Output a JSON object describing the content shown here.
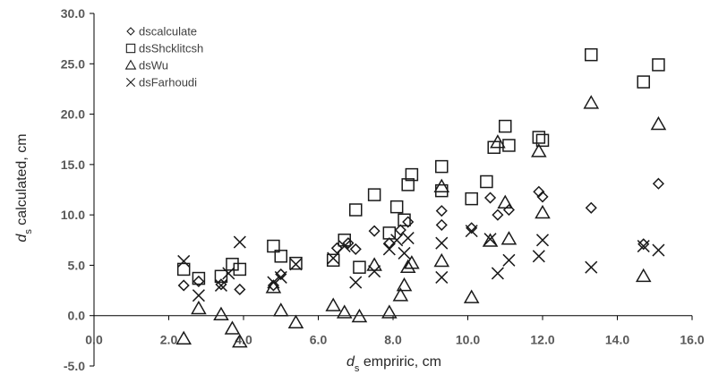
{
  "chart_data": {
    "type": "scatter",
    "title": "",
    "xlabel": {
      "symbol": "d",
      "subscript": "s",
      "rest": " empriric, cm"
    },
    "ylabel": {
      "symbol": "d",
      "subscript": "s",
      "rest": " calculated, cm"
    },
    "xlim": [
      0,
      16
    ],
    "ylim": [
      -5,
      30
    ],
    "x_ticks": [
      "0.0",
      "2.0",
      "4.0",
      "6.0",
      "8.0",
      "10.0",
      "12.0",
      "14.0",
      "16.0"
    ],
    "y_ticks": [
      "30.0",
      "25.0",
      "20.0",
      "15.0",
      "10.0",
      "5.0",
      "0.0",
      "-5.0"
    ],
    "grid": false,
    "legend_position": "top-left",
    "series": [
      {
        "name": "dscalculate",
        "marker": "diamond",
        "points": [
          [
            2.4,
            3.0
          ],
          [
            2.8,
            3.4
          ],
          [
            3.4,
            3.1
          ],
          [
            3.9,
            2.6
          ],
          [
            4.8,
            3.0
          ],
          [
            5.0,
            4.1
          ],
          [
            6.5,
            6.7
          ],
          [
            6.8,
            7.2
          ],
          [
            7.0,
            6.6
          ],
          [
            7.5,
            8.4
          ],
          [
            7.9,
            7.2
          ],
          [
            8.2,
            8.5
          ],
          [
            8.4,
            9.3
          ],
          [
            9.3,
            10.4
          ],
          [
            9.3,
            9.0
          ],
          [
            10.1,
            8.7
          ],
          [
            10.6,
            11.7
          ],
          [
            10.8,
            10.0
          ],
          [
            11.1,
            10.5
          ],
          [
            11.9,
            12.3
          ],
          [
            12.0,
            11.8
          ],
          [
            13.3,
            10.7
          ],
          [
            14.7,
            7.1
          ],
          [
            15.1,
            13.1
          ]
        ]
      },
      {
        "name": "dsShcklitcsh",
        "marker": "square",
        "points": [
          [
            2.4,
            4.6
          ],
          [
            2.8,
            3.7
          ],
          [
            3.4,
            3.9
          ],
          [
            3.7,
            5.1
          ],
          [
            3.9,
            4.6
          ],
          [
            4.8,
            6.9
          ],
          [
            5.0,
            5.9
          ],
          [
            5.4,
            5.2
          ],
          [
            6.4,
            5.5
          ],
          [
            6.7,
            7.5
          ],
          [
            7.0,
            10.5
          ],
          [
            7.1,
            4.8
          ],
          [
            7.5,
            12.0
          ],
          [
            7.9,
            8.2
          ],
          [
            8.1,
            10.8
          ],
          [
            8.3,
            9.5
          ],
          [
            8.4,
            13.0
          ],
          [
            8.5,
            14.0
          ],
          [
            9.3,
            14.8
          ],
          [
            9.3,
            12.4
          ],
          [
            10.1,
            11.6
          ],
          [
            10.5,
            13.3
          ],
          [
            10.7,
            16.7
          ],
          [
            11.0,
            18.8
          ],
          [
            11.1,
            16.9
          ],
          [
            11.9,
            17.7
          ],
          [
            12.0,
            17.4
          ],
          [
            13.3,
            25.9
          ],
          [
            14.7,
            23.2
          ],
          [
            15.1,
            24.9
          ]
        ]
      },
      {
        "name": "dsWu",
        "marker": "triangle",
        "points": [
          [
            2.4,
            -2.3
          ],
          [
            2.8,
            0.7
          ],
          [
            3.4,
            0.1
          ],
          [
            3.7,
            -1.3
          ],
          [
            3.9,
            -2.6
          ],
          [
            4.8,
            2.8
          ],
          [
            5.0,
            0.5
          ],
          [
            5.4,
            -0.7
          ],
          [
            6.4,
            1.0
          ],
          [
            6.7,
            0.3
          ],
          [
            7.1,
            -0.1
          ],
          [
            7.5,
            5.0
          ],
          [
            7.9,
            0.3
          ],
          [
            8.2,
            2.0
          ],
          [
            8.3,
            3.0
          ],
          [
            8.4,
            4.8
          ],
          [
            8.5,
            5.2
          ],
          [
            9.3,
            5.4
          ],
          [
            9.3,
            12.8
          ],
          [
            10.1,
            1.8
          ],
          [
            10.6,
            7.4
          ],
          [
            10.8,
            17.2
          ],
          [
            11.0,
            11.2
          ],
          [
            11.1,
            7.6
          ],
          [
            11.9,
            16.3
          ],
          [
            12.0,
            10.2
          ],
          [
            13.3,
            21.1
          ],
          [
            14.7,
            3.9
          ],
          [
            15.1,
            19.0
          ]
        ]
      },
      {
        "name": "dsFarhoudi",
        "marker": "x",
        "points": [
          [
            2.4,
            5.4
          ],
          [
            2.8,
            2.0
          ],
          [
            3.4,
            3.0
          ],
          [
            3.6,
            4.2
          ],
          [
            3.9,
            7.3
          ],
          [
            4.8,
            3.3
          ],
          [
            5.0,
            3.8
          ],
          [
            5.4,
            5.1
          ],
          [
            6.4,
            5.7
          ],
          [
            6.7,
            6.9
          ],
          [
            7.0,
            3.3
          ],
          [
            7.5,
            4.4
          ],
          [
            7.9,
            6.6
          ],
          [
            8.1,
            7.5
          ],
          [
            8.3,
            6.2
          ],
          [
            8.4,
            7.7
          ],
          [
            9.3,
            7.2
          ],
          [
            9.3,
            3.8
          ],
          [
            10.1,
            8.4
          ],
          [
            10.6,
            7.6
          ],
          [
            10.8,
            4.2
          ],
          [
            11.1,
            5.5
          ],
          [
            11.9,
            5.9
          ],
          [
            12.0,
            7.5
          ],
          [
            13.3,
            4.8
          ],
          [
            14.7,
            6.9
          ],
          [
            15.1,
            6.5
          ]
        ]
      }
    ]
  }
}
